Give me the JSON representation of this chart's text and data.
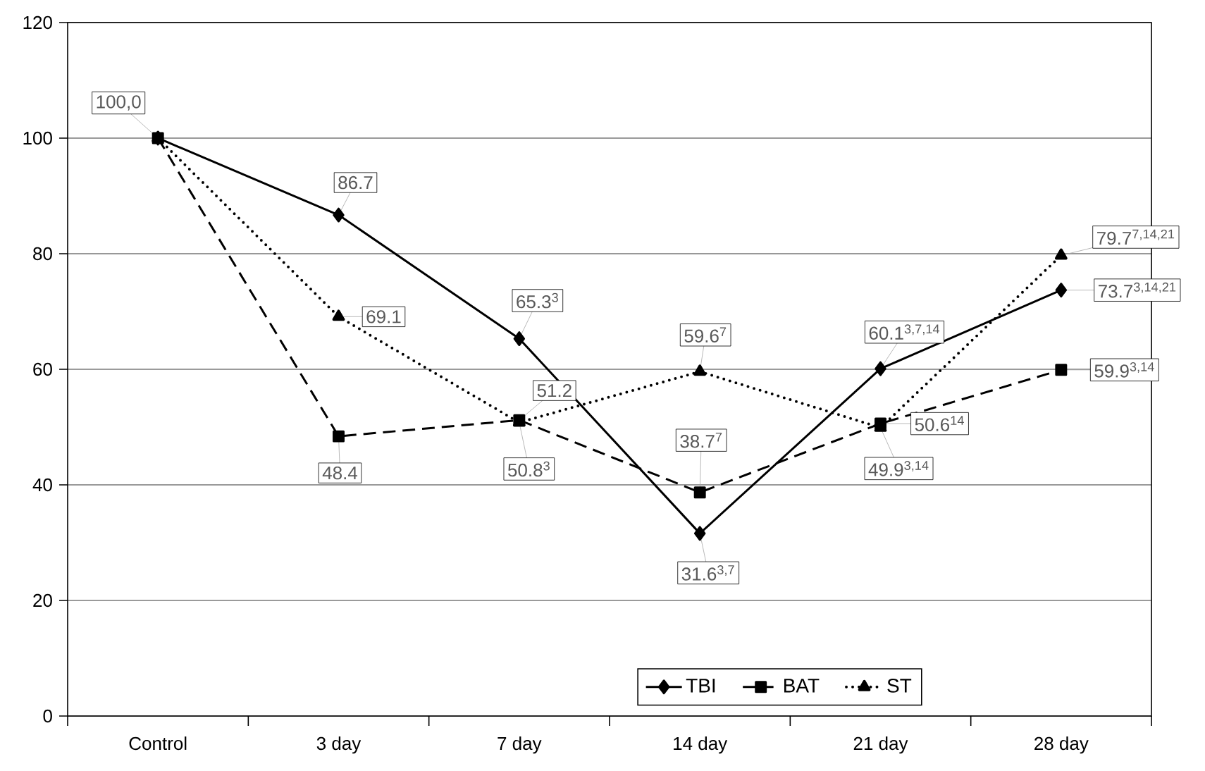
{
  "chart_data": {
    "type": "line",
    "categories": [
      "Control",
      "3 day",
      "7 day",
      "14 day",
      "21 day",
      "28 day"
    ],
    "series": [
      {
        "name": "TBI",
        "color": "#000000",
        "marker": "diamond",
        "line_style": "solid",
        "values": [
          100.0,
          86.7,
          65.3,
          31.6,
          60.1,
          73.7
        ],
        "value_labels": [
          "100,0",
          "86.7",
          "65.3$^{3}$",
          "31.6$^{3,7}$",
          "60.1$^{3,7,14}$",
          "73.7$^{3,14,21}$"
        ]
      },
      {
        "name": "BAT",
        "color": "#000000",
        "marker": "square",
        "line_style": "dashed",
        "values": [
          100.0,
          48.4,
          51.2,
          38.7,
          50.6,
          59.9
        ],
        "value_labels": [
          null,
          "48.4",
          "51.2",
          "38.7$^{7}$",
          "50.6$^{14}$",
          "59.9$^{3,14}$"
        ]
      },
      {
        "name": "ST",
        "color": "#000000",
        "marker": "triangle",
        "line_style": "dotted",
        "values": [
          100.0,
          69.1,
          50.8,
          59.6,
          49.9,
          79.7
        ],
        "value_labels": [
          null,
          "69.1",
          "50.8$^{3}$",
          "59.6$^{7}$",
          "49.9$^{3,14}$",
          "79.7$^{7,14,21}$"
        ]
      }
    ],
    "ylim": [
      0,
      120
    ],
    "yticks": [
      0,
      20,
      40,
      60,
      80,
      100,
      120
    ],
    "grid": "y",
    "legend": "bottom"
  }
}
